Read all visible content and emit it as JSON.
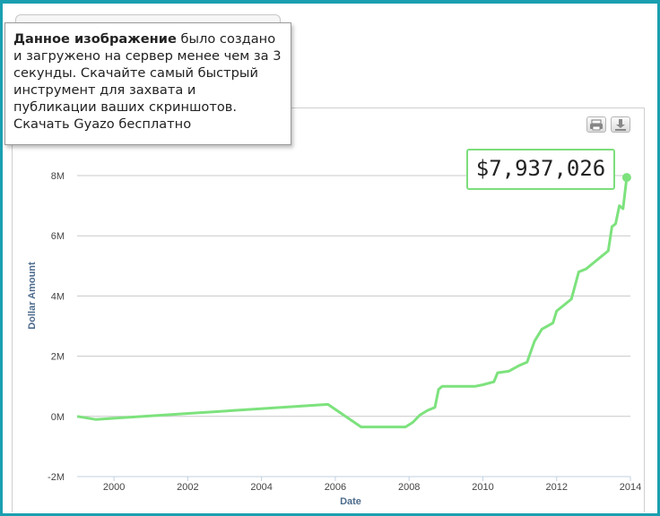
{
  "tooltip": {
    "bold_text": "Данное изображение",
    "rest_text": " было создано и загружено на сервер менее чем за 3 секунды. Скачайте самый быстрый инструмент для захвата и публикации ваших скриншотов. Скачать Gyazo бесплатно"
  },
  "toolbar": {
    "print_icon": "printer-icon",
    "download_icon": "download-icon"
  },
  "callout": {
    "value_label": "$7,937,026"
  },
  "colors": {
    "line": "#7de27d",
    "frame": "#1a9fb0",
    "grid": "#c8c8c8",
    "axis_title": "#4d6b8c"
  },
  "chart_data": {
    "type": "line",
    "title": "",
    "xlabel": "Date",
    "ylabel": "Dollar Amount",
    "xlim": [
      1999,
      2014
    ],
    "ylim": [
      -2000000,
      8000000
    ],
    "x_ticks": [
      "2000",
      "2002",
      "2004",
      "2006",
      "2008",
      "2010",
      "2012",
      "2014"
    ],
    "x_tick_values": [
      2000,
      2002,
      2004,
      2006,
      2008,
      2010,
      2012,
      2014
    ],
    "y_ticks": [
      "-2M",
      "0M",
      "2M",
      "4M",
      "6M",
      "8M"
    ],
    "y_tick_values": [
      -2000000,
      0,
      2000000,
      4000000,
      6000000,
      8000000
    ],
    "grid": true,
    "legend": "none",
    "series": [
      {
        "x": [
          1999.0,
          1999.5,
          2005.8,
          2006.7,
          2007.9,
          2008.1,
          2008.3,
          2008.5,
          2008.7,
          2008.8,
          2008.9,
          2009.2,
          2009.8,
          2010.0,
          2010.3,
          2010.4,
          2010.7,
          2011.0,
          2011.2,
          2011.4,
          2011.6,
          2011.9,
          2012.0,
          2012.2,
          2012.4,
          2012.6,
          2012.8,
          2013.0,
          2013.2,
          2013.4,
          2013.5,
          2013.6,
          2013.7,
          2013.8,
          2013.9
        ],
        "values": [
          0,
          -100000,
          400000,
          -350000,
          -350000,
          -200000,
          50000,
          200000,
          300000,
          900000,
          1000000,
          1000000,
          1000000,
          1050000,
          1150000,
          1450000,
          1500000,
          1700000,
          1800000,
          2500000,
          2900000,
          3100000,
          3500000,
          3700000,
          3900000,
          4800000,
          4900000,
          5100000,
          5300000,
          5500000,
          6300000,
          6400000,
          7000000,
          6900000,
          7937026
        ]
      }
    ],
    "annotations": [
      {
        "x": 2013.9,
        "y": 7937026,
        "text": "$7,937,026"
      }
    ]
  }
}
